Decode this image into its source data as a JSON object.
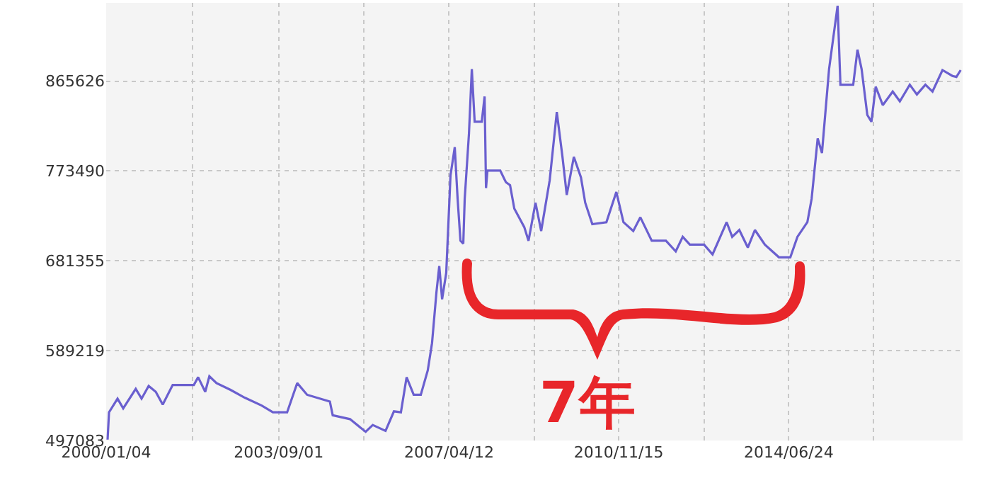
{
  "chart_data": {
    "type": "line",
    "x": [
      "2000-01-15",
      "2000-01-26",
      "2000-04-01",
      "2000-05-15",
      "2000-08-20",
      "2000-10-04",
      "2000-11-28",
      "2001-01-22",
      "2001-03-17",
      "2001-06-02",
      "2001-11-13",
      "2001-12-16",
      "2002-02-09",
      "2002-03-13",
      "2002-05-07",
      "2002-08-24",
      "2002-12-12",
      "2003-04-22",
      "2003-07-18",
      "2003-11-05",
      "2004-01-22",
      "2004-04-08",
      "2004-10-01",
      "2004-10-23",
      "2005-03-06",
      "2005-07-05",
      "2005-08-29",
      "2005-12-06",
      "2006-02-09",
      "2006-04-04",
      "2006-05-18",
      "2006-07-12",
      "2006-09-05",
      "2006-10-29",
      "2006-12-01",
      "2007-01-04",
      "2007-01-26",
      "2007-02-17",
      "2007-03-21",
      "2007-04-23",
      "2007-05-26",
      "2007-06-17",
      "2007-07-09",
      "2007-07-31",
      "2007-08-11",
      "2007-09-13",
      "2007-10-05",
      "2007-10-27",
      "2007-12-21",
      "2008-01-12",
      "2008-01-23",
      "2008-02-03",
      "2008-05-12",
      "2008-06-25",
      "2008-07-27",
      "2008-08-29",
      "2008-11-14",
      "2008-12-17",
      "2009-02-09",
      "2009-03-25",
      "2009-05-30",
      "2009-07-24",
      "2009-09-06",
      "2009-10-09",
      "2009-12-03",
      "2010-01-27",
      "2010-03-01",
      "2010-04-25",
      "2010-08-12",
      "2010-10-28",
      "2010-12-22",
      "2011-03-08",
      "2011-05-02",
      "2011-07-29",
      "2011-11-16",
      "2012-01-31",
      "2012-03-25",
      "2012-05-19",
      "2012-09-06",
      "2012-11-11",
      "2013-02-28",
      "2013-04-12",
      "2013-06-06",
      "2013-08-11",
      "2013-10-05",
      "2013-12-21",
      "2014-04-09",
      "2014-07-06",
      "2014-08-30",
      "2014-11-15",
      "2014-12-18",
      "2015-02-03",
      "2015-03-08",
      "2015-05-02",
      "2015-07-07",
      "2015-07-29",
      "2015-11-05",
      "2015-12-08",
      "2016-01-09",
      "2016-02-22",
      "2016-03-25",
      "2016-04-27",
      "2016-06-21",
      "2016-09-06",
      "2016-10-31",
      "2017-01-16",
      "2017-03-12",
      "2017-05-17",
      "2017-07-11",
      "2017-09-26",
      "2017-12-12",
      "2018-01-12",
      "2018-02-14"
    ],
    "series": [
      {
        "color": "#6a5fcf",
        "values": [
          498000,
          526000,
          540000,
          530000,
          550000,
          540000,
          553000,
          547000,
          534000,
          554000,
          554000,
          562000,
          547000,
          563000,
          556000,
          549000,
          541000,
          533000,
          526000,
          526000,
          556000,
          544000,
          537000,
          523000,
          519000,
          506000,
          513000,
          507000,
          527000,
          526000,
          562000,
          544000,
          544000,
          569000,
          597000,
          649000,
          676000,
          642000,
          669000,
          769000,
          798000,
          745000,
          702000,
          699000,
          745000,
          812000,
          878000,
          824000,
          824000,
          850000,
          756000,
          774000,
          774000,
          762000,
          759000,
          735000,
          716000,
          702000,
          741000,
          712000,
          764000,
          834000,
          788000,
          749000,
          788000,
          767000,
          741000,
          719000,
          721000,
          752000,
          721000,
          712000,
          726000,
          702000,
          702000,
          691000,
          706000,
          698000,
          698000,
          688000,
          721000,
          706000,
          713000,
          695000,
          713000,
          698000,
          685000,
          685000,
          706000,
          721000,
          745000,
          807000,
          792000,
          878000,
          943000,
          862000,
          862000,
          898000,
          878000,
          831000,
          824000,
          860000,
          841000,
          855000,
          845000,
          862000,
          852000,
          862000,
          855000,
          877000,
          871000,
          870000,
          877000
        ]
      }
    ],
    "xlim": [
      "2000-01-04",
      "2018-03-01"
    ],
    "xticks": [
      {
        "value": "2000-01-04",
        "label": "2000/01/04"
      },
      {
        "value": "2001-11-02",
        "label": null
      },
      {
        "value": "2003-09-01",
        "label": "2003/09/01"
      },
      {
        "value": "2005-06-22",
        "label": null
      },
      {
        "value": "2007-04-12",
        "label": "2007/04/12"
      },
      {
        "value": "2009-02-01",
        "label": null
      },
      {
        "value": "2010-11-15",
        "label": "2010/11/15"
      },
      {
        "value": "2012-09-05",
        "label": null
      },
      {
        "value": "2014-06-24",
        "label": "2014/06/24"
      },
      {
        "value": "2016-04-10",
        "label": null
      }
    ],
    "ylim": [
      497083,
      946000
    ],
    "yticks": [
      497083,
      589219,
      681355,
      773490,
      865626
    ],
    "grid": true,
    "annotations": [
      "7年"
    ]
  }
}
